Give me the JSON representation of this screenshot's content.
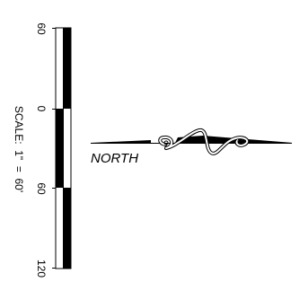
{
  "scale_bar": {
    "caption": "SCALE:  1\"  =  60'",
    "ticks": [
      "60",
      "0",
      "60",
      "120"
    ]
  },
  "north_arrow": {
    "label": "NORTH"
  },
  "colors": {
    "ink": "#000000",
    "paper": "#ffffff"
  }
}
